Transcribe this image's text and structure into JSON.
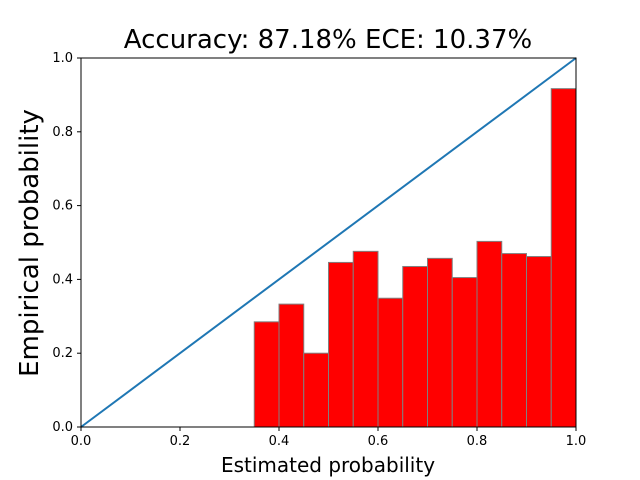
{
  "chart_data": {
    "type": "bar",
    "title": "Accuracy: 87.18% ECE: 10.37%",
    "xlabel": "Estimated probability",
    "ylabel": "Empirical probability",
    "xlim": [
      0.0,
      1.0
    ],
    "ylim": [
      0.0,
      1.0
    ],
    "grid": false,
    "bar_color": "#ff0000",
    "bar_edge_color": "#808080",
    "diagonal_color": "#1f77b4",
    "bin_width": 0.05,
    "x_ticks": [
      "0.0",
      "0.2",
      "0.4",
      "0.6",
      "0.8",
      "1.0"
    ],
    "y_ticks": [
      "0.0",
      "0.2",
      "0.4",
      "0.6",
      "0.8",
      "1.0"
    ],
    "bins": [
      {
        "start": 0.35,
        "value": 0.285
      },
      {
        "start": 0.4,
        "value": 0.333
      },
      {
        "start": 0.45,
        "value": 0.2
      },
      {
        "start": 0.5,
        "value": 0.446
      },
      {
        "start": 0.55,
        "value": 0.476
      },
      {
        "start": 0.6,
        "value": 0.349
      },
      {
        "start": 0.65,
        "value": 0.435
      },
      {
        "start": 0.7,
        "value": 0.457
      },
      {
        "start": 0.75,
        "value": 0.405
      },
      {
        "start": 0.8,
        "value": 0.503
      },
      {
        "start": 0.85,
        "value": 0.47
      },
      {
        "start": 0.9,
        "value": 0.462
      },
      {
        "start": 0.95,
        "value": 0.917
      }
    ],
    "diagonal": [
      [
        0.0,
        0.0
      ],
      [
        1.0,
        1.0
      ]
    ]
  }
}
